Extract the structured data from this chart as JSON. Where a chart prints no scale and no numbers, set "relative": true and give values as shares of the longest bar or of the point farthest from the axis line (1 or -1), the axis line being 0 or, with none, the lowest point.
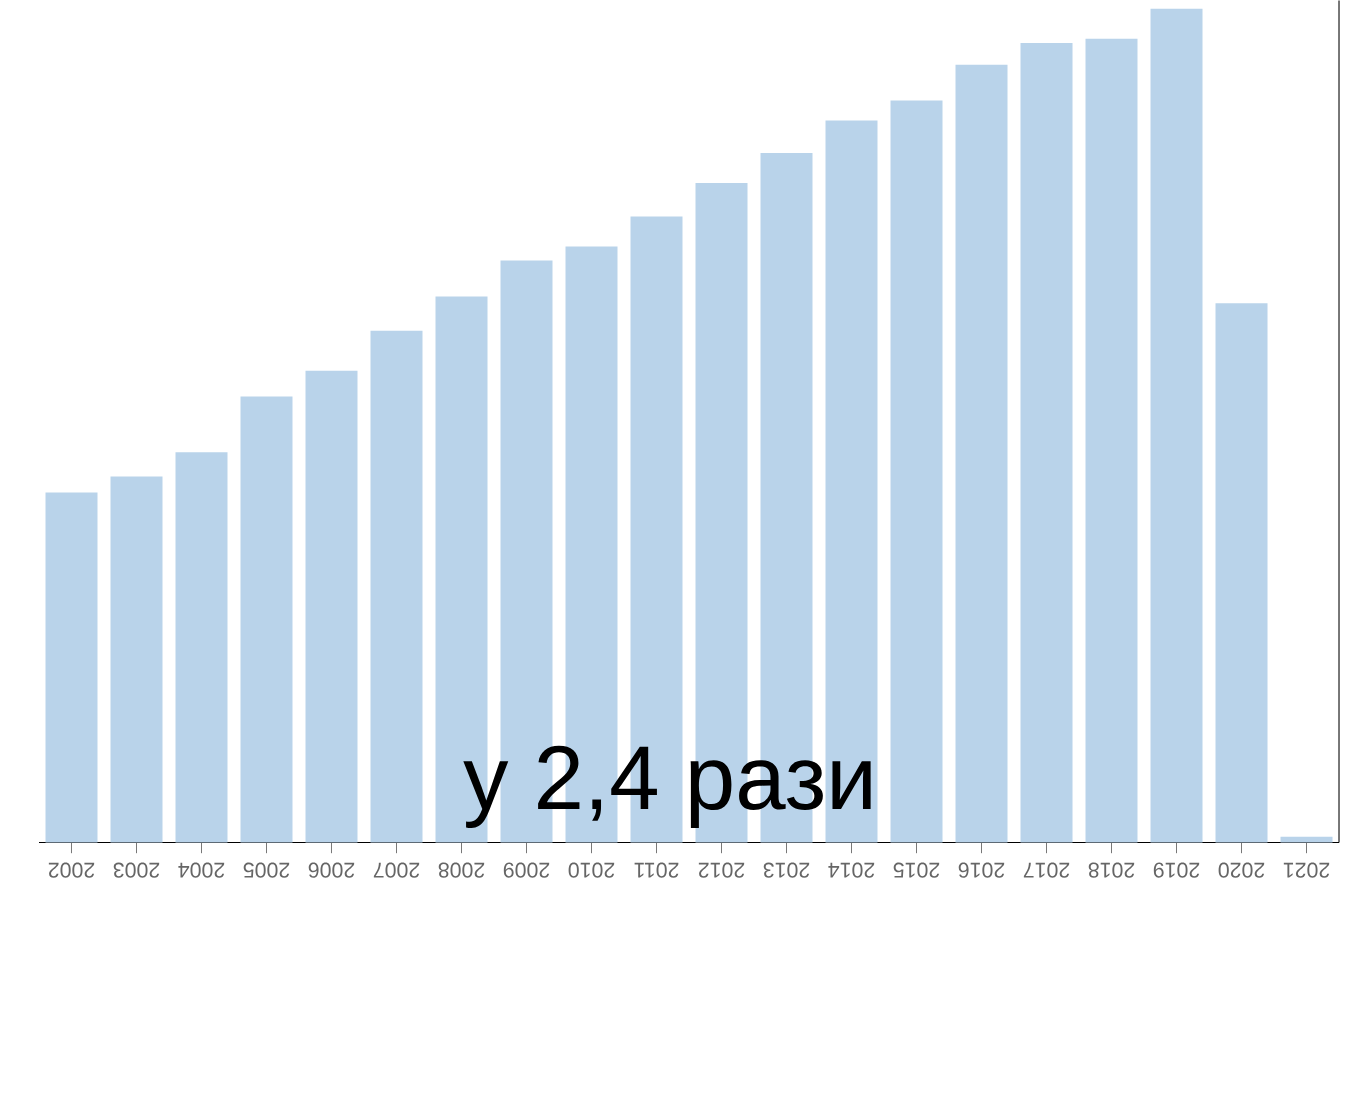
{
  "chart_data": {
    "type": "bar",
    "relative": true,
    "categories": [
      "2002",
      "2003",
      "2004",
      "2005",
      "2006",
      "2007",
      "2008",
      "2009",
      "2010",
      "2011",
      "2012",
      "2013",
      "2014",
      "2015",
      "2016",
      "2017",
      "2018",
      "2019",
      "2020",
      "2021"
    ],
    "values": [
      0.42,
      0.439,
      0.468,
      0.535,
      0.566,
      0.614,
      0.655,
      0.698,
      0.715,
      0.751,
      0.791,
      0.827,
      0.866,
      0.89,
      0.933,
      0.959,
      0.964,
      1,
      0.647,
      0.007
    ],
    "color": "#b9d3ea",
    "annotations": [
      "у 2,4 рази"
    ]
  }
}
